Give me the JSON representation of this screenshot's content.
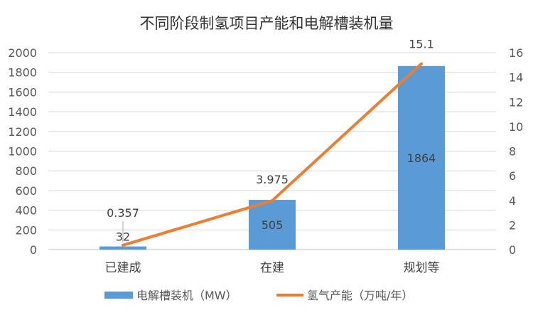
{
  "chart_data": {
    "type": "bar+line",
    "title": "不同阶段制氢项目产能和电解槽装机量",
    "categories": [
      "已建成",
      "在建",
      "规划等"
    ],
    "series": [
      {
        "name": "电解槽装机（MW）",
        "type": "bar",
        "axis": "left",
        "values": [
          32,
          505,
          1864
        ],
        "labels": [
          "32",
          "505",
          "1864"
        ],
        "color": "#5B9BD5"
      },
      {
        "name": "氢气产能（万吨/年）",
        "type": "line",
        "axis": "right",
        "values": [
          0.357,
          3.975,
          15.1
        ],
        "labels": [
          "0.357",
          "3.975",
          "15.1"
        ],
        "color": "#ED7D31"
      }
    ],
    "y_left": {
      "min": 0,
      "max": 2000,
      "step": 200,
      "ticks": [
        "0",
        "200",
        "400",
        "600",
        "800",
        "1000",
        "1200",
        "1400",
        "1600",
        "1800",
        "2000"
      ]
    },
    "y_right": {
      "min": 0,
      "max": 16,
      "step": 2,
      "ticks": [
        "0",
        "2",
        "4",
        "6",
        "8",
        "10",
        "12",
        "14",
        "16"
      ]
    },
    "grid": true,
    "legend_position": "bottom"
  }
}
